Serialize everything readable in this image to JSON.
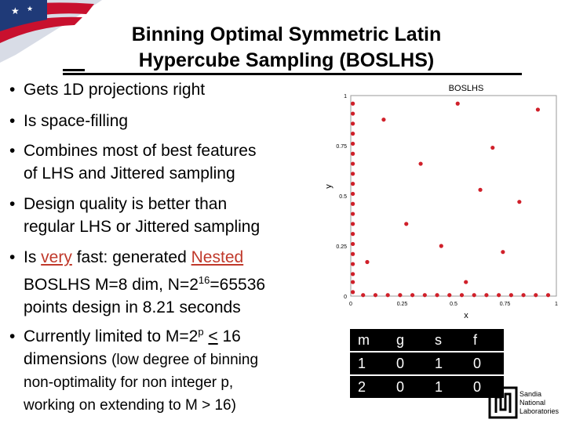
{
  "slide": {
    "title_line1": "Binning Optimal Symmetric Latin",
    "title_line2": "Hypercube Sampling (BOSLHS)"
  },
  "bullets": {
    "b1": "Gets 1D projections right",
    "b2": "Is space-filling",
    "b3_l1": "Combines most of best features",
    "b3_l2": "of LHS and Jittered sampling",
    "b4_l1": "Design quality is better than",
    "b4_l2": "regular LHS or Jittered sampling",
    "b5_pre": "Is ",
    "b5_very": "very",
    "b5_mid": " fast: generated ",
    "b5_nested": "Nested",
    "b5_l2_pre": "BOSLHS M=8 dim, N=2",
    "b5_l2_sup": "16",
    "b5_l2_post": "=65536",
    "b5_l3": "points design in 8.21 seconds",
    "b6_l1_pre": "Currently limited to M=2",
    "b6_l1_sup": "p",
    "b6_l1_mid": " ",
    "b6_l1_le": "<",
    "b6_l1_post": " 16",
    "b6_l2a": "dimensions ",
    "b6_l2b": "(low degree of binning",
    "b6_l3": "non-optimality for non integer p,",
    "b6_l4": "working on extending to M > 16)"
  },
  "chart_data": {
    "type": "scatter",
    "title": "BOSLHS",
    "xlabel": "x",
    "ylabel": "y",
    "xlim": [
      0,
      1
    ],
    "ylim": [
      0,
      1
    ],
    "xticks": [
      "0",
      "0.25",
      "0.5",
      "0.75",
      "1"
    ],
    "yticks": [
      "0",
      "0.25",
      "0.5",
      "0.75",
      "1"
    ],
    "marker_color": "#d0202a",
    "series": [
      {
        "points": [
          [
            0.08,
            0.17
          ],
          [
            0.16,
            0.88
          ],
          [
            0.27,
            0.36
          ],
          [
            0.34,
            0.66
          ],
          [
            0.44,
            0.25
          ],
          [
            0.52,
            0.96
          ],
          [
            0.56,
            0.07
          ],
          [
            0.63,
            0.53
          ],
          [
            0.69,
            0.74
          ],
          [
            0.74,
            0.22
          ],
          [
            0.82,
            0.47
          ],
          [
            0.91,
            0.93
          ]
        ]
      },
      {
        "points": [
          [
            0.01,
            0.02
          ],
          [
            0.01,
            0.07
          ],
          [
            0.01,
            0.11
          ],
          [
            0.01,
            0.16
          ],
          [
            0.01,
            0.21
          ],
          [
            0.01,
            0.26
          ],
          [
            0.01,
            0.31
          ],
          [
            0.01,
            0.36
          ],
          [
            0.01,
            0.41
          ],
          [
            0.01,
            0.46
          ],
          [
            0.01,
            0.51
          ],
          [
            0.01,
            0.56
          ],
          [
            0.01,
            0.61
          ],
          [
            0.01,
            0.66
          ],
          [
            0.01,
            0.71
          ],
          [
            0.01,
            0.76
          ],
          [
            0.01,
            0.81
          ],
          [
            0.01,
            0.86
          ],
          [
            0.01,
            0.91
          ],
          [
            0.01,
            0.96
          ]
        ]
      },
      {
        "points": [
          [
            0.06,
            0.005
          ],
          [
            0.12,
            0.005
          ],
          [
            0.18,
            0.005
          ],
          [
            0.24,
            0.005
          ],
          [
            0.3,
            0.005
          ],
          [
            0.36,
            0.005
          ],
          [
            0.42,
            0.005
          ],
          [
            0.48,
            0.005
          ],
          [
            0.54,
            0.005
          ],
          [
            0.6,
            0.005
          ],
          [
            0.66,
            0.005
          ],
          [
            0.72,
            0.005
          ],
          [
            0.78,
            0.005
          ],
          [
            0.84,
            0.005
          ],
          [
            0.9,
            0.005
          ],
          [
            0.96,
            0.005
          ]
        ]
      }
    ]
  },
  "table": {
    "header": [
      "m",
      "g",
      "s",
      "f"
    ],
    "rows": [
      [
        "1",
        "0",
        "1",
        "0"
      ],
      [
        "2",
        "0",
        "1",
        "0"
      ]
    ]
  },
  "logo": {
    "line1": "Sandia",
    "line2": "National",
    "line3": "Laboratories",
    "color": "#000000"
  }
}
